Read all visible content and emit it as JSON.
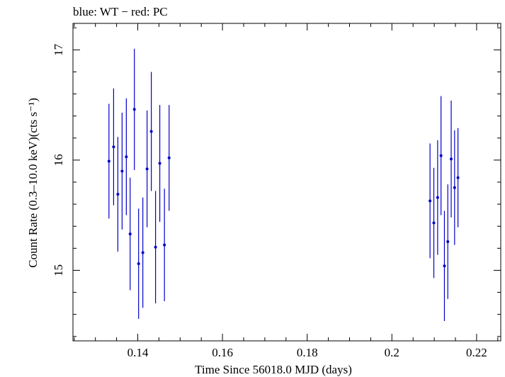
{
  "chart_data": {
    "type": "scatter",
    "title": "blue: WT − red: PC",
    "xlabel": "Time Since 56018.0 MJD (days)",
    "ylabel": "Count Rate (0.3–10.0 keV)(cts s⁻¹)",
    "xlim": [
      0.1247,
      0.2257
    ],
    "ylim": [
      14.36,
      17.24
    ],
    "x_ticks": [
      0.14,
      0.16,
      0.18,
      0.2,
      0.22
    ],
    "x_tick_labels": [
      "0.14",
      "0.16",
      "0.18",
      "0.2",
      "0.22"
    ],
    "y_ticks": [
      15,
      16,
      17
    ],
    "y_tick_labels": [
      "15",
      "16",
      "17"
    ],
    "grid": false,
    "colors": {
      "WT": "#0000cc",
      "axis": "#000000"
    },
    "series": [
      {
        "color": "#0000cc",
        "x_err": 0.0003,
        "x": [
          0.1332,
          0.1343,
          0.1353,
          0.1363,
          0.1373,
          0.1382,
          0.1392,
          0.1402,
          0.1412,
          0.1422,
          0.1432,
          0.1442,
          0.1452,
          0.1463,
          0.1474,
          0.209,
          0.2099,
          0.2108,
          0.2116,
          0.2124,
          0.2132,
          0.214,
          0.2148,
          0.2156
        ],
        "y": [
          15.99,
          16.12,
          15.69,
          15.9,
          16.03,
          15.33,
          16.46,
          15.06,
          15.16,
          15.92,
          16.26,
          15.21,
          15.97,
          15.23,
          16.02,
          15.63,
          15.43,
          15.66,
          16.04,
          15.04,
          15.26,
          16.01,
          15.75,
          15.84
        ],
        "y_err": [
          0.52,
          0.53,
          0.52,
          0.53,
          0.53,
          0.51,
          0.55,
          0.5,
          0.5,
          0.53,
          0.54,
          0.51,
          0.53,
          0.51,
          0.48,
          0.52,
          0.5,
          0.52,
          0.54,
          0.5,
          0.52,
          0.53,
          0.52,
          0.45
        ]
      }
    ]
  }
}
